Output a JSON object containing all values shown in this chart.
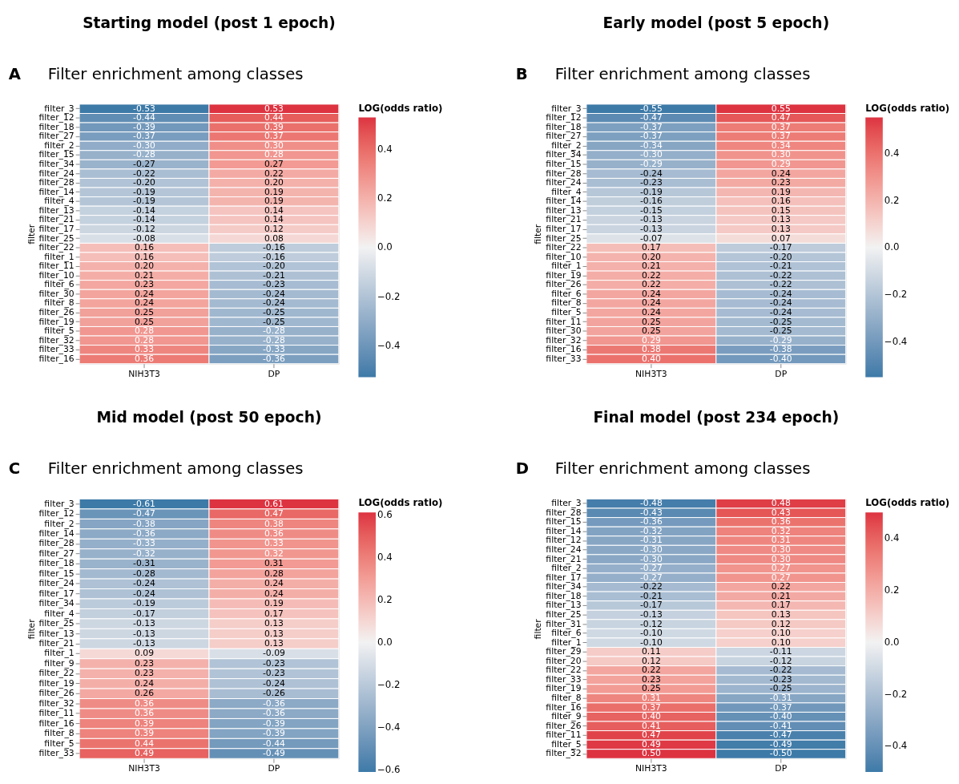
{
  "chart_data": [
    {
      "type": "heatmap",
      "title": "Starting model (post 1 epoch)",
      "subtitle": "Filter enrichment among classes",
      "annotations": [
        "A"
      ],
      "ylabel": "filter",
      "clabel": "LOG(odds ratio)",
      "categories": [
        "NIH3T3",
        "DP"
      ],
      "y_categories": [
        "filter_3",
        "filter_12",
        "filter_18",
        "filter_27",
        "filter_2",
        "filter_15",
        "filter_34",
        "filter_24",
        "filter_28",
        "filter_14",
        "filter_4",
        "filter_13",
        "filter_21",
        "filter_17",
        "filter_25",
        "filter_22",
        "filter_1",
        "filter_11",
        "filter_10",
        "filter_6",
        "filter_30",
        "filter_8",
        "filter_26",
        "filter_19",
        "filter_5",
        "filter_32",
        "filter_33",
        "filter_16"
      ],
      "cells": [
        [
          -0.53,
          0.53
        ],
        [
          -0.44,
          0.44
        ],
        [
          -0.39,
          0.39
        ],
        [
          -0.37,
          0.37
        ],
        [
          -0.3,
          0.3
        ],
        [
          -0.28,
          0.28
        ],
        [
          -0.27,
          0.27
        ],
        [
          -0.22,
          0.22
        ],
        [
          -0.2,
          0.2
        ],
        [
          -0.19,
          0.19
        ],
        [
          -0.19,
          0.19
        ],
        [
          -0.14,
          0.14
        ],
        [
          -0.14,
          0.14
        ],
        [
          -0.12,
          0.12
        ],
        [
          -0.08,
          0.08
        ],
        [
          0.16,
          -0.16
        ],
        [
          0.16,
          -0.16
        ],
        [
          0.2,
          -0.2
        ],
        [
          0.21,
          -0.21
        ],
        [
          0.23,
          -0.23
        ],
        [
          0.24,
          -0.24
        ],
        [
          0.24,
          -0.24
        ],
        [
          0.25,
          -0.25
        ],
        [
          0.25,
          -0.25
        ],
        [
          0.28,
          -0.28
        ],
        [
          0.28,
          -0.28
        ],
        [
          0.33,
          -0.33
        ],
        [
          0.36,
          -0.36
        ]
      ],
      "cell_labels": [
        [
          "-0.53",
          "0.53"
        ],
        [
          "-0.44",
          "0.44"
        ],
        [
          "-0.39",
          "0.39"
        ],
        [
          "-0.37",
          "0.37"
        ],
        [
          "-0.30",
          "0.30"
        ],
        [
          "-0.28",
          "0.28"
        ],
        [
          "-0.27",
          "0.27"
        ],
        [
          "-0.22",
          "0.22"
        ],
        [
          "-0.20",
          "0.20"
        ],
        [
          "-0.19",
          "0.19"
        ],
        [
          "-0.19",
          "0.19"
        ],
        [
          "-0.14",
          "0.14"
        ],
        [
          "-0.14",
          "0.14"
        ],
        [
          "-0.12",
          "0.12"
        ],
        [
          "-0.08",
          "0.08"
        ],
        [
          "0.16",
          "-0.16"
        ],
        [
          "0.16",
          "-0.16"
        ],
        [
          "0.20",
          "-0.20"
        ],
        [
          "0.21",
          "-0.21"
        ],
        [
          "0.23",
          "-0.23"
        ],
        [
          "0.24",
          "-0.24"
        ],
        [
          "0.24",
          "-0.24"
        ],
        [
          "0.25",
          "-0.25"
        ],
        [
          "0.25",
          "-0.25"
        ],
        [
          "0.28",
          "-0.28"
        ],
        [
          "0.28",
          "-0.28"
        ],
        [
          "0.33",
          "-0.33"
        ],
        [
          "0.36",
          "-0.36"
        ]
      ],
      "data_labels": true,
      "clim": [
        -0.53,
        0.53
      ],
      "cticks": [
        {
          "value": -0.4,
          "label": "−0.4"
        },
        {
          "value": -0.2,
          "label": "−0.2"
        },
        {
          "value": 0,
          "label": "0.0"
        },
        0.2,
        0.4
      ]
    },
    {
      "type": "heatmap",
      "title": "Early model (post 5 epoch)",
      "subtitle": "Filter enrichment among classes",
      "annotations": [
        "B"
      ],
      "ylabel": "filter",
      "clabel": "LOG(odds ratio)",
      "categories": [
        "NIH3T3",
        "DP"
      ],
      "y_categories": [
        "filter_3",
        "filter_12",
        "filter_18",
        "filter_27",
        "filter_2",
        "filter_34",
        "filter_15",
        "filter_28",
        "filter_24",
        "filter_4",
        "filter_14",
        "filter_13",
        "filter_21",
        "filter_17",
        "filter_25",
        "filter_22",
        "filter_10",
        "filter_1",
        "filter_19",
        "filter_26",
        "filter_6",
        "filter_8",
        "filter_5",
        "filter_11",
        "filter_30",
        "filter_32",
        "filter_16",
        "filter_33"
      ],
      "cells": [
        [
          -0.55,
          0.55
        ],
        [
          -0.47,
          0.47
        ],
        [
          -0.37,
          0.37
        ],
        [
          -0.37,
          0.37
        ],
        [
          -0.34,
          0.34
        ],
        [
          -0.3,
          0.3
        ],
        [
          -0.29,
          0.29
        ],
        [
          -0.24,
          0.24
        ],
        [
          -0.23,
          0.23
        ],
        [
          -0.19,
          0.19
        ],
        [
          -0.16,
          0.16
        ],
        [
          -0.15,
          0.15
        ],
        [
          -0.13,
          0.13
        ],
        [
          -0.13,
          0.13
        ],
        [
          -0.07,
          0.07
        ],
        [
          0.17,
          -0.17
        ],
        [
          0.2,
          -0.2
        ],
        [
          0.21,
          -0.21
        ],
        [
          0.22,
          -0.22
        ],
        [
          0.22,
          -0.22
        ],
        [
          0.24,
          -0.24
        ],
        [
          0.24,
          -0.24
        ],
        [
          0.24,
          -0.24
        ],
        [
          0.25,
          -0.25
        ],
        [
          0.25,
          -0.25
        ],
        [
          0.29,
          -0.29
        ],
        [
          0.38,
          -0.38
        ],
        [
          0.4,
          -0.4
        ]
      ],
      "cell_labels": [
        [
          "-0.55",
          "0.55"
        ],
        [
          "-0.47",
          "0.47"
        ],
        [
          "-0.37",
          "0.37"
        ],
        [
          "-0.37",
          "0.37"
        ],
        [
          "-0.34",
          "0.34"
        ],
        [
          "-0.30",
          "0.30"
        ],
        [
          "-0.29",
          "0.29"
        ],
        [
          "-0.24",
          "0.24"
        ],
        [
          "-0.23",
          "0.23"
        ],
        [
          "-0.19",
          "0.19"
        ],
        [
          "-0.16",
          "0.16"
        ],
        [
          "-0.15",
          "0.15"
        ],
        [
          "-0.13",
          "0.13"
        ],
        [
          "-0.13",
          "0.13"
        ],
        [
          "-0.07",
          "0.07"
        ],
        [
          "0.17",
          "-0.17"
        ],
        [
          "0.20",
          "-0.20"
        ],
        [
          "0.21",
          "-0.21"
        ],
        [
          "0.22",
          "-0.22"
        ],
        [
          "0.22",
          "-0.22"
        ],
        [
          "0.24",
          "-0.24"
        ],
        [
          "0.24",
          "-0.24"
        ],
        [
          "0.24",
          "-0.24"
        ],
        [
          "0.25",
          "-0.25"
        ],
        [
          "0.25",
          "-0.25"
        ],
        [
          "0.29",
          "-0.29"
        ],
        [
          "0.38",
          "-0.38"
        ],
        [
          "0.40",
          "-0.40"
        ]
      ],
      "data_labels": true,
      "clim": [
        -0.55,
        0.55
      ],
      "cticks": [
        {
          "value": -0.4,
          "label": "−0.4"
        },
        {
          "value": -0.2,
          "label": "−0.2"
        },
        {
          "value": 0,
          "label": "0.0"
        },
        0.2,
        0.4
      ]
    },
    {
      "type": "heatmap",
      "title": "Mid model (post 50 epoch)",
      "subtitle": "Filter enrichment among classes",
      "annotations": [
        "C"
      ],
      "ylabel": "filter",
      "clabel": "LOG(odds ratio)",
      "categories": [
        "NIH3T3",
        "DP"
      ],
      "y_categories": [
        "filter_3",
        "filter_12",
        "filter_2",
        "filter_14",
        "filter_28",
        "filter_27",
        "filter_18",
        "filter_15",
        "filter_24",
        "filter_17",
        "filter_34",
        "filter_4",
        "filter_25",
        "filter_13",
        "filter_21",
        "filter_1",
        "filter_9",
        "filter_22",
        "filter_19",
        "filter_26",
        "filter_32",
        "filter_11",
        "filter_16",
        "filter_8",
        "filter_5",
        "filter_33"
      ],
      "cells": [
        [
          -0.61,
          0.61
        ],
        [
          -0.47,
          0.47
        ],
        [
          -0.38,
          0.38
        ],
        [
          -0.36,
          0.36
        ],
        [
          -0.33,
          0.33
        ],
        [
          -0.32,
          0.32
        ],
        [
          -0.31,
          0.31
        ],
        [
          -0.28,
          0.28
        ],
        [
          -0.24,
          0.24
        ],
        [
          -0.24,
          0.24
        ],
        [
          -0.19,
          0.19
        ],
        [
          -0.17,
          0.17
        ],
        [
          -0.13,
          0.13
        ],
        [
          -0.13,
          0.13
        ],
        [
          -0.13,
          0.13
        ],
        [
          0.09,
          -0.09
        ],
        [
          0.23,
          -0.23
        ],
        [
          0.23,
          -0.23
        ],
        [
          0.24,
          -0.24
        ],
        [
          0.26,
          -0.26
        ],
        [
          0.36,
          -0.36
        ],
        [
          0.36,
          -0.36
        ],
        [
          0.39,
          -0.39
        ],
        [
          0.39,
          -0.39
        ],
        [
          0.44,
          -0.44
        ],
        [
          0.49,
          -0.49
        ]
      ],
      "cell_labels": [
        [
          "-0.61",
          "0.61"
        ],
        [
          "-0.47",
          "0.47"
        ],
        [
          "-0.38",
          "0.38"
        ],
        [
          "-0.36",
          "0.36"
        ],
        [
          "-0.33",
          "0.33"
        ],
        [
          "-0.32",
          "0.32"
        ],
        [
          "-0.31",
          "0.31"
        ],
        [
          "-0.28",
          "0.28"
        ],
        [
          "-0.24",
          "0.24"
        ],
        [
          "-0.24",
          "0.24"
        ],
        [
          "-0.19",
          "0.19"
        ],
        [
          "-0.17",
          "0.17"
        ],
        [
          "-0.13",
          "0.13"
        ],
        [
          "-0.13",
          "0.13"
        ],
        [
          "-0.13",
          "0.13"
        ],
        [
          "0.09",
          "-0.09"
        ],
        [
          "0.23",
          "-0.23"
        ],
        [
          "0.23",
          "-0.23"
        ],
        [
          "0.24",
          "-0.24"
        ],
        [
          "0.26",
          "-0.26"
        ],
        [
          "0.36",
          "-0.36"
        ],
        [
          "0.36",
          "-0.36"
        ],
        [
          "0.39",
          "-0.39"
        ],
        [
          "0.39",
          "-0.39"
        ],
        [
          "0.44",
          "-0.44"
        ],
        [
          "0.49",
          "-0.49"
        ]
      ],
      "data_labels": true,
      "clim": [
        -0.61,
        0.61
      ],
      "cticks": [
        {
          "value": -0.6,
          "label": "−0.6"
        },
        {
          "value": -0.4,
          "label": "−0.4"
        },
        {
          "value": -0.2,
          "label": "−0.2"
        },
        {
          "value": 0,
          "label": "0.0"
        },
        0.2,
        0.4,
        0.6
      ]
    },
    {
      "type": "heatmap",
      "title": "Final model (post 234 epoch)",
      "subtitle": "Filter enrichment among classes",
      "annotations": [
        "D"
      ],
      "ylabel": "filter",
      "clabel": "LOG(odds ratio)",
      "categories": [
        "NIH3T3",
        "DP"
      ],
      "y_categories": [
        "filter_3",
        "filter_28",
        "filter_15",
        "filter_14",
        "filter_12",
        "filter_24",
        "filter_21",
        "filter_2",
        "filter_17",
        "filter_34",
        "filter_18",
        "filter_13",
        "filter_25",
        "filter_31",
        "filter_6",
        "filter_1",
        "filter_29",
        "filter_20",
        "filter_22",
        "filter_33",
        "filter_19",
        "filter_8",
        "filter_16",
        "filter_9",
        "filter_26",
        "filter_11",
        "filter_5",
        "filter_32"
      ],
      "cells": [
        [
          -0.48,
          0.48
        ],
        [
          -0.43,
          0.43
        ],
        [
          -0.36,
          0.36
        ],
        [
          -0.32,
          0.32
        ],
        [
          -0.31,
          0.31
        ],
        [
          -0.3,
          0.3
        ],
        [
          -0.3,
          0.3
        ],
        [
          -0.27,
          0.27
        ],
        [
          -0.27,
          0.27
        ],
        [
          -0.22,
          0.22
        ],
        [
          -0.21,
          0.21
        ],
        [
          -0.17,
          0.17
        ],
        [
          -0.13,
          0.13
        ],
        [
          -0.12,
          0.12
        ],
        [
          -0.1,
          0.1
        ],
        [
          -0.1,
          0.1
        ],
        [
          0.11,
          -0.11
        ],
        [
          0.12,
          -0.12
        ],
        [
          0.22,
          -0.22
        ],
        [
          0.23,
          -0.23
        ],
        [
          0.25,
          -0.25
        ],
        [
          0.31,
          -0.31
        ],
        [
          0.37,
          -0.37
        ],
        [
          0.4,
          -0.4
        ],
        [
          0.41,
          -0.41
        ],
        [
          0.47,
          -0.47
        ],
        [
          0.49,
          -0.49
        ],
        [
          0.5,
          -0.5
        ]
      ],
      "cell_labels": [
        [
          "-0.48",
          "0.48"
        ],
        [
          "-0.43",
          "0.43"
        ],
        [
          "-0.36",
          "0.36"
        ],
        [
          "-0.32",
          "0.32"
        ],
        [
          "-0.31",
          "0.31"
        ],
        [
          "-0.30",
          "0.30"
        ],
        [
          "-0.30",
          "0.30"
        ],
        [
          "-0.27",
          "0.27"
        ],
        [
          "-0.27",
          "0.27"
        ],
        [
          "-0.22",
          "0.22"
        ],
        [
          "-0.21",
          "0.21"
        ],
        [
          "-0.17",
          "0.17"
        ],
        [
          "-0.13",
          "0.13"
        ],
        [
          "-0.12",
          "0.12"
        ],
        [
          "-0.10",
          "0.10"
        ],
        [
          "-0.10",
          "0.10"
        ],
        [
          "0.11",
          "-0.11"
        ],
        [
          "0.12",
          "-0.12"
        ],
        [
          "0.22",
          "-0.22"
        ],
        [
          "0.23",
          "-0.23"
        ],
        [
          "0.25",
          "-0.25"
        ],
        [
          "0.31",
          "-0.31"
        ],
        [
          "0.37",
          "-0.37"
        ],
        [
          "0.40",
          "-0.40"
        ],
        [
          "0.41",
          "-0.41"
        ],
        [
          "0.47",
          "-0.47"
        ],
        [
          "0.49",
          "-0.49"
        ],
        [
          "0.50",
          "-0.50"
        ]
      ],
      "data_labels": true,
      "clim": [
        -0.5,
        0.5
      ],
      "cticks": [
        {
          "value": -0.4,
          "label": "−0.4"
        },
        {
          "value": -0.2,
          "label": "−0.2"
        },
        {
          "value": 0,
          "label": "0.0"
        },
        0.2,
        0.4
      ]
    }
  ]
}
